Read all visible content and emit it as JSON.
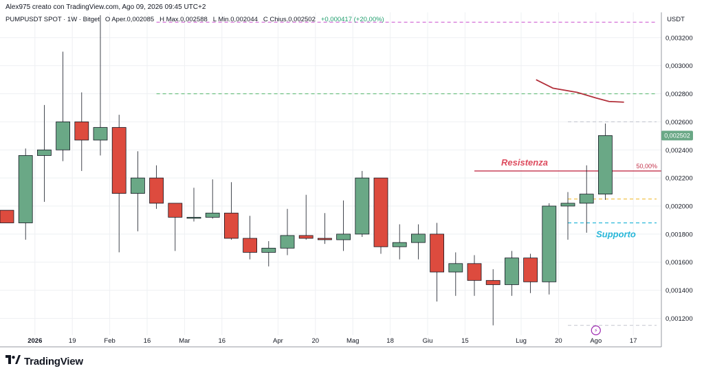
{
  "header": {
    "creator_line": "Alex975 creato con TradingView.com, Ago 09, 2026 09:45 UTC+2",
    "symbol_line": "PUMPUSDT SPOT · 1W · Bitget",
    "o_label": "O",
    "o_value": "Aper.0,002085",
    "h_label": "H",
    "h_value": "Max.0,002588",
    "l_label": "L",
    "l_value": "Min.0,002044",
    "c_label": "C",
    "c_value": "Chius.0,002502",
    "change": "+0,000417 (+20,00%)"
  },
  "brand": {
    "name": "TradingView",
    "logo_icon": "tradingview-logo-icon"
  },
  "colors": {
    "up": "#6aa886",
    "down": "#dd4b3e",
    "resistance_line": "#c2314a",
    "ma_line": "#b22f3a",
    "support_dashed": "#27b7d9",
    "price_tag": "#6aa886",
    "grid": "#eef0f3"
  },
  "chart_data": {
    "type": "candlestick",
    "currency_label": "USDT",
    "ylim": [
      0.00108,
      0.00338
    ],
    "y_ticks": [
      0.0012,
      0.0014,
      0.0016,
      0.0018,
      0.002,
      0.0022,
      0.0024,
      0.0026,
      0.0028,
      0.003,
      0.0032
    ],
    "y_tick_labels": [
      "0,001200",
      "0,001400",
      "0,001600",
      "0,001800",
      "0,002000",
      "0,002200",
      "0,002400",
      "0,002600",
      "0,002800",
      "0,003000",
      "0,003200"
    ],
    "x_ticks": [
      {
        "pos": 1.5,
        "label": "2026",
        "bold": true
      },
      {
        "pos": 3.5,
        "label": "19"
      },
      {
        "pos": 5.5,
        "label": "Feb"
      },
      {
        "pos": 7.5,
        "label": "16"
      },
      {
        "pos": 9.5,
        "label": "Mar"
      },
      {
        "pos": 11.5,
        "label": "16"
      },
      {
        "pos": 14.5,
        "label": "Apr"
      },
      {
        "pos": 16.5,
        "label": "20"
      },
      {
        "pos": 18.5,
        "label": "Mag"
      },
      {
        "pos": 20.5,
        "label": "18"
      },
      {
        "pos": 22.5,
        "label": "Giu"
      },
      {
        "pos": 24.5,
        "label": "15"
      },
      {
        "pos": 27.5,
        "label": "Lug"
      },
      {
        "pos": 29.5,
        "label": "20"
      },
      {
        "pos": 31.5,
        "label": "Ago"
      },
      {
        "pos": 33.5,
        "label": "17"
      }
    ],
    "candles": [
      {
        "o": 0.00197,
        "h": 0.00197,
        "l": 0.00188,
        "c": 0.00188
      },
      {
        "o": 0.00188,
        "h": 0.00241,
        "l": 0.00176,
        "c": 0.00236
      },
      {
        "o": 0.00236,
        "h": 0.00272,
        "l": 0.00203,
        "c": 0.0024
      },
      {
        "o": 0.0024,
        "h": 0.0031,
        "l": 0.00232,
        "c": 0.0026
      },
      {
        "o": 0.0026,
        "h": 0.00281,
        "l": 0.00225,
        "c": 0.00247
      },
      {
        "o": 0.00247,
        "h": 0.00336,
        "l": 0.00236,
        "c": 0.00256
      },
      {
        "o": 0.00256,
        "h": 0.00265,
        "l": 0.00167,
        "c": 0.00209
      },
      {
        "o": 0.00209,
        "h": 0.00239,
        "l": 0.00182,
        "c": 0.0022
      },
      {
        "o": 0.0022,
        "h": 0.00229,
        "l": 0.00198,
        "c": 0.00202
      },
      {
        "o": 0.00202,
        "h": 0.00202,
        "l": 0.00168,
        "c": 0.00192
      },
      {
        "o": 0.00192,
        "h": 0.00213,
        "l": 0.00189,
        "c": 0.00192
      },
      {
        "o": 0.00192,
        "h": 0.00219,
        "l": 0.00191,
        "c": 0.00195
      },
      {
        "o": 0.00195,
        "h": 0.00217,
        "l": 0.00176,
        "c": 0.00177
      },
      {
        "o": 0.00177,
        "h": 0.00193,
        "l": 0.00162,
        "c": 0.00167
      },
      {
        "o": 0.00167,
        "h": 0.00175,
        "l": 0.00157,
        "c": 0.0017
      },
      {
        "o": 0.0017,
        "h": 0.00198,
        "l": 0.00165,
        "c": 0.00179
      },
      {
        "o": 0.00179,
        "h": 0.00208,
        "l": 0.00176,
        "c": 0.00177
      },
      {
        "o": 0.00177,
        "h": 0.00195,
        "l": 0.00173,
        "c": 0.00176
      },
      {
        "o": 0.00176,
        "h": 0.00204,
        "l": 0.00168,
        "c": 0.0018
      },
      {
        "o": 0.0018,
        "h": 0.00225,
        "l": 0.00178,
        "c": 0.0022
      },
      {
        "o": 0.0022,
        "h": 0.0022,
        "l": 0.00166,
        "c": 0.00171
      },
      {
        "o": 0.00171,
        "h": 0.00187,
        "l": 0.00162,
        "c": 0.00174
      },
      {
        "o": 0.00174,
        "h": 0.00187,
        "l": 0.00162,
        "c": 0.0018
      },
      {
        "o": 0.0018,
        "h": 0.00188,
        "l": 0.00132,
        "c": 0.00153
      },
      {
        "o": 0.00153,
        "h": 0.00167,
        "l": 0.00136,
        "c": 0.00159
      },
      {
        "o": 0.00159,
        "h": 0.00165,
        "l": 0.00136,
        "c": 0.00147
      },
      {
        "o": 0.00147,
        "h": 0.00155,
        "l": 0.00115,
        "c": 0.00144
      },
      {
        "o": 0.00144,
        "h": 0.00168,
        "l": 0.00136,
        "c": 0.00163
      },
      {
        "o": 0.00163,
        "h": 0.00166,
        "l": 0.00138,
        "c": 0.00146
      },
      {
        "o": 0.00146,
        "h": 0.00202,
        "l": 0.00137,
        "c": 0.002
      },
      {
        "o": 0.002,
        "h": 0.0021,
        "l": 0.00176,
        "c": 0.00202
      },
      {
        "o": 0.00202,
        "h": 0.00229,
        "l": 0.00181,
        "c": 0.002085
      },
      {
        "o": 0.002085,
        "h": 0.002588,
        "l": 0.002044,
        "c": 0.002502
      }
    ],
    "ma_line": {
      "points": [
        {
          "x": 28.3,
          "y": 0.0029
        },
        {
          "x": 29.2,
          "y": 0.00284
        },
        {
          "x": 30.5,
          "y": 0.00281
        },
        {
          "x": 31.5,
          "y": 0.00277
        },
        {
          "x": 32.2,
          "y": 0.002745
        },
        {
          "x": 33.0,
          "y": 0.00274
        }
      ]
    },
    "horizontal_lines": [
      {
        "name": "magenta-level",
        "value": 0.00331,
        "color": "#d061d4",
        "dash": true,
        "x_from": 8.0
      },
      {
        "name": "green-level",
        "value": 0.0028,
        "color": "#6cc080",
        "dash": true,
        "x_from": 8.0
      },
      {
        "name": "grey-upper-level",
        "value": 0.0026,
        "color": "#c9ccd4",
        "dash": true,
        "x_from": 30.0
      },
      {
        "name": "yellow-level",
        "value": 0.00205,
        "color": "#f3c24a",
        "dash": true,
        "x_from": 30.0
      },
      {
        "name": "support-level",
        "value": 0.00188,
        "color": "#27b7d9",
        "dash": true,
        "x_from": 30.0
      },
      {
        "name": "grey-lower-level",
        "value": 0.00115,
        "color": "#c9ccd4",
        "dash": true,
        "x_from": 30.0
      }
    ],
    "resistance": {
      "value": 0.00225,
      "x_from": 25.0,
      "label": "Resistenza",
      "fib_label": "50,00%"
    },
    "support": {
      "label": "Supporto"
    },
    "last_price_label": "0,002502"
  }
}
